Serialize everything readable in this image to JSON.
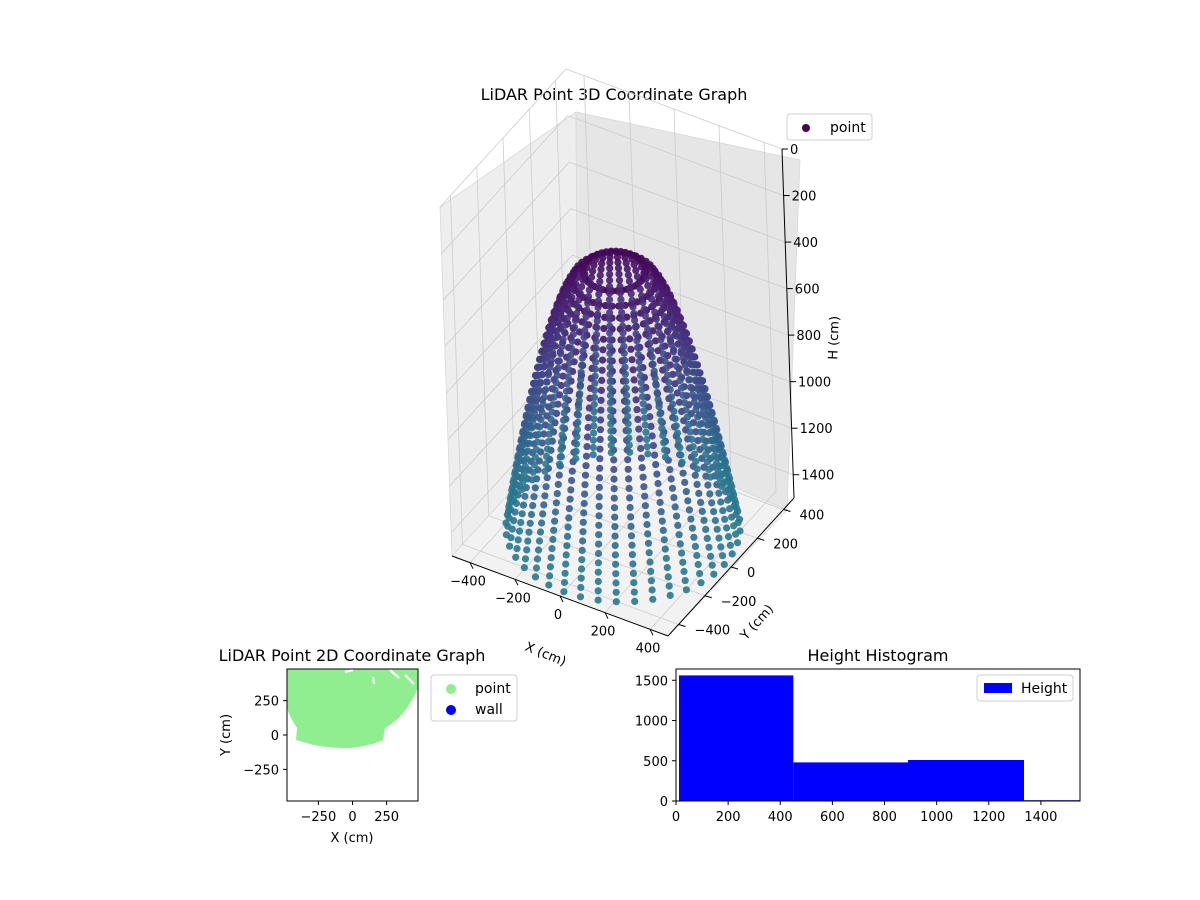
{
  "chart_data": [
    {
      "type": "scatter",
      "title": "LiDAR Point 3D Coordinate Graph",
      "projection": "3d",
      "xlabel": "X (cm)",
      "ylabel": "Y (cm)",
      "zlabel": "H (cm)",
      "x_ticks": [
        "−400",
        "−200",
        "0",
        "200",
        "400"
      ],
      "y_ticks": [
        "−400",
        "−200",
        "0",
        "200",
        "400"
      ],
      "z_ticks": [
        "0",
        "200",
        "400",
        "600",
        "800",
        "1000",
        "1200",
        "1400"
      ],
      "xlim": [
        -480,
        480
      ],
      "ylim": [
        -480,
        480
      ],
      "zlim": [
        1500,
        0
      ],
      "z_inverted": true,
      "grid": true,
      "legend": {
        "placement": "top-right",
        "entries": [
          {
            "name": "point",
            "color": "#440154"
          }
        ]
      },
      "colormap": "viridis",
      "series": [
        {
          "name": "point",
          "description": "bowl-shaped point cloud: points along circles of radius ~450 cm at heights 0-1100 cm, converging toward the bottom",
          "shape": {
            "radius_top": 450,
            "radius_bottom": 120,
            "h_min": 0,
            "h_max": 1100,
            "columns": 40,
            "rings": 32
          }
        }
      ]
    },
    {
      "type": "scatter",
      "title": "LiDAR Point 2D Coordinate Graph",
      "xlabel": "X (cm)",
      "ylabel": "Y (cm)",
      "x_ticks": [
        "−250",
        "0",
        "250"
      ],
      "y_ticks": [
        "250",
        "0",
        "−250"
      ],
      "xlim": [
        -480,
        480
      ],
      "ylim": [
        -480,
        480
      ],
      "legend": {
        "placement": "outside-right",
        "entries": [
          {
            "name": "point",
            "color": "#90ee90"
          },
          {
            "name": "wall",
            "color": "#0000ff"
          }
        ]
      },
      "series": [
        {
          "name": "point",
          "color": "#90ee90",
          "description": "dense filled cloud covering the upper half of the plane (y from about -100 to 480)"
        },
        {
          "name": "wall",
          "color": "#0000ff",
          "values": []
        }
      ]
    },
    {
      "type": "bar",
      "title": "Height Histogram",
      "xlabel": "",
      "ylabel": "",
      "bins": [
        {
          "x0": 0,
          "x1": 450,
          "count": 1560
        },
        {
          "x0": 450,
          "x1": 890,
          "count": 480
        },
        {
          "x0": 890,
          "x1": 1335,
          "count": 510
        },
        {
          "x0": 1335,
          "x1": 1550,
          "count": 10
        }
      ],
      "x_ticks": [
        "0",
        "200",
        "400",
        "600",
        "800",
        "1000",
        "1200",
        "1400"
      ],
      "y_ticks": [
        "0",
        "500",
        "1000",
        "1500"
      ],
      "xlim": [
        0,
        1550
      ],
      "ylim": [
        0,
        1640
      ],
      "color": "#0000ff",
      "legend": {
        "placement": "top-right",
        "entries": [
          {
            "name": "Height",
            "color": "#0000ff"
          }
        ]
      }
    }
  ]
}
